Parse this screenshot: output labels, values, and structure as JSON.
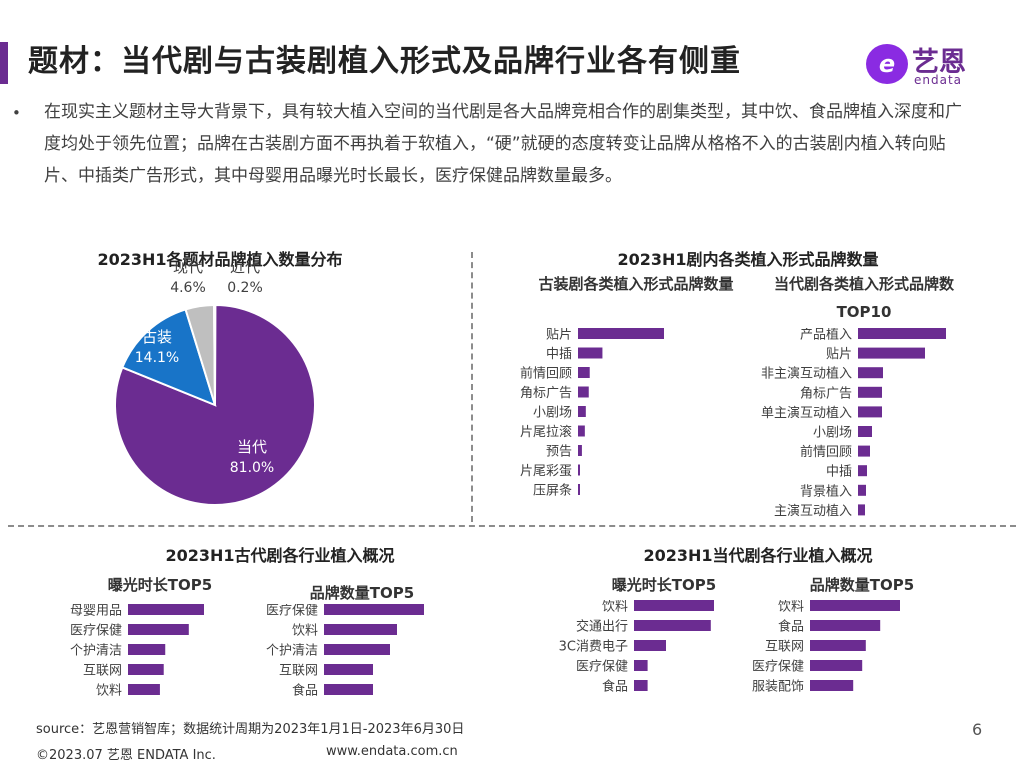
{
  "header": {
    "title": "题材：当代剧与古装剧植入形式及品牌行业各有侧重",
    "logo_cn": "艺恩",
    "logo_en": "endata",
    "logo_mark": "e"
  },
  "bullet": {
    "dot": "•",
    "text": "在现实主义题材主导大背景下，具有较大植入空间的当代剧是各大品牌竞相合作的剧集类型，其中饮、食品牌植入深度和广度均处于领先位置；品牌在古装剧方面不再执着于软植入，“硬”就硬的态度转变让品牌从格格不入的古装剧内植入转向贴片、中插类广告形式，其中母婴用品曝光时长最长，医疗保健品牌数量最多。"
  },
  "colors": {
    "purple": "#6b2c91",
    "bar": "#6b2c91",
    "blue": "#1874c8",
    "gray": "#bfbfbf"
  },
  "chart_data": [
    {
      "type": "pie",
      "title": "2023H1各题材品牌植入数量分布",
      "slices": [
        {
          "label": "当代",
          "value": 81.0,
          "value_text": "81.0%",
          "color": "#6b2c91"
        },
        {
          "label": "古装",
          "value": 14.1,
          "value_text": "14.1%",
          "color": "#1874c8"
        },
        {
          "label": "现代",
          "value": 4.6,
          "value_text": "4.6%",
          "color": "#bfbfbf"
        },
        {
          "label": "近代",
          "value": 0.2,
          "value_text": "0.2%",
          "color": "#6b2c91"
        }
      ]
    },
    {
      "type": "bar",
      "orientation": "horizontal",
      "group_title": "2023H1剧内各类植入形式品牌数量",
      "title": "古装剧各类植入形式品牌数量",
      "categories": [
        "贴片",
        "中插",
        "前情回顾",
        "角标广告",
        "小剧场",
        "片尾拉滚",
        "预告",
        "片尾彩蛋",
        "压屏条"
      ],
      "values": [
        88,
        25,
        12,
        11,
        8,
        7,
        4,
        1,
        1
      ]
    },
    {
      "type": "bar",
      "orientation": "horizontal",
      "title": "当代剧各类植入形式品牌数TOP10",
      "categories": [
        "产品植入",
        "贴片",
        "非主演互动植入",
        "角标广告",
        "单主演互动植入",
        "小剧场",
        "前情回顾",
        "中插",
        "背景植入",
        "主演互动植入"
      ],
      "values": [
        88,
        67,
        25,
        24,
        24,
        14,
        12,
        9,
        8,
        7
      ]
    },
    {
      "type": "bar",
      "orientation": "horizontal",
      "group_title": "2023H1古代剧各行业植入概况",
      "title": "曝光时长TOP5",
      "categories": [
        "母婴用品",
        "医疗保健",
        "个护清洁",
        "互联网",
        "饮料"
      ],
      "values": [
        100,
        80,
        49,
        47,
        42
      ]
    },
    {
      "type": "bar",
      "orientation": "horizontal",
      "title": "品牌数量TOP5",
      "categories": [
        "医疗保健",
        "饮料",
        "个护清洁",
        "互联网",
        "食品"
      ],
      "values": [
        100,
        73,
        66,
        49,
        49
      ]
    },
    {
      "type": "bar",
      "orientation": "horizontal",
      "group_title": "2023H1当代剧各行业植入概况",
      "title": "曝光时长TOP5",
      "categories": [
        "饮料",
        "交通出行",
        "3C消费电子",
        "医疗保健",
        "食品"
      ],
      "values": [
        100,
        96,
        40,
        17,
        17
      ]
    },
    {
      "type": "bar",
      "orientation": "horizontal",
      "title": "品牌数量TOP5",
      "categories": [
        "饮料",
        "食品",
        "互联网",
        "医疗保健",
        "服装配饰"
      ],
      "values": [
        100,
        78,
        62,
        58,
        48
      ]
    }
  ],
  "footer": {
    "source": "source：艺恩营销智库；数据统计周期为2023年1月1日-2023年6月30日",
    "copyright": "©2023.07 艺恩 ENDATA Inc.",
    "url": "www.endata.com.cn",
    "page": "6"
  }
}
